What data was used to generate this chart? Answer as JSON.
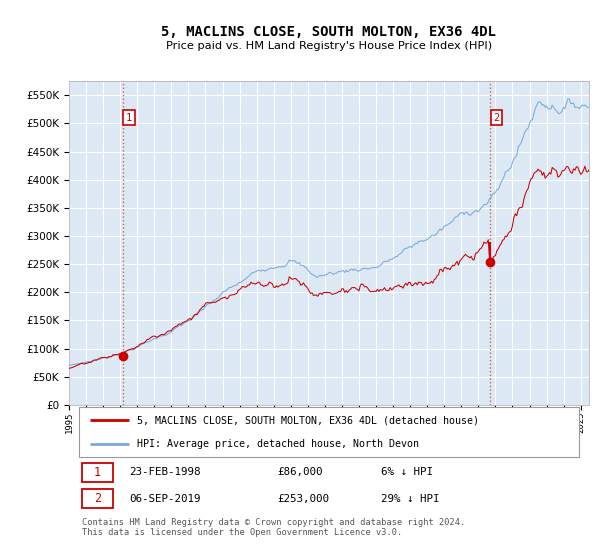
{
  "title": "5, MACLINS CLOSE, SOUTH MOLTON, EX36 4DL",
  "subtitle": "Price paid vs. HM Land Registry's House Price Index (HPI)",
  "sale1_date_label": "23-FEB-1998",
  "sale1_price": 86000,
  "sale1_price_label": "£86,000",
  "sale1_hpi_pct": "6% ↓ HPI",
  "sale1_year": 1998.14,
  "sale2_date_label": "06-SEP-2019",
  "sale2_price": 253000,
  "sale2_price_label": "£253,000",
  "sale2_hpi_pct": "29% ↓ HPI",
  "sale2_year": 2019.68,
  "legend_red": "5, MACLINS CLOSE, SOUTH MOLTON, EX36 4DL (detached house)",
  "legend_blue": "HPI: Average price, detached house, North Devon",
  "footnote": "Contains HM Land Registry data © Crown copyright and database right 2024.\nThis data is licensed under the Open Government Licence v3.0.",
  "ylim": [
    0,
    575000
  ],
  "yticks": [
    0,
    50000,
    100000,
    150000,
    200000,
    250000,
    300000,
    350000,
    400000,
    450000,
    500000,
    550000
  ],
  "start_year": 1995.0,
  "end_year": 2025.5,
  "bg_color": "#dce9f5",
  "red_color": "#cc0000",
  "blue_color": "#7aaadd",
  "grid_color": "#ffffff"
}
